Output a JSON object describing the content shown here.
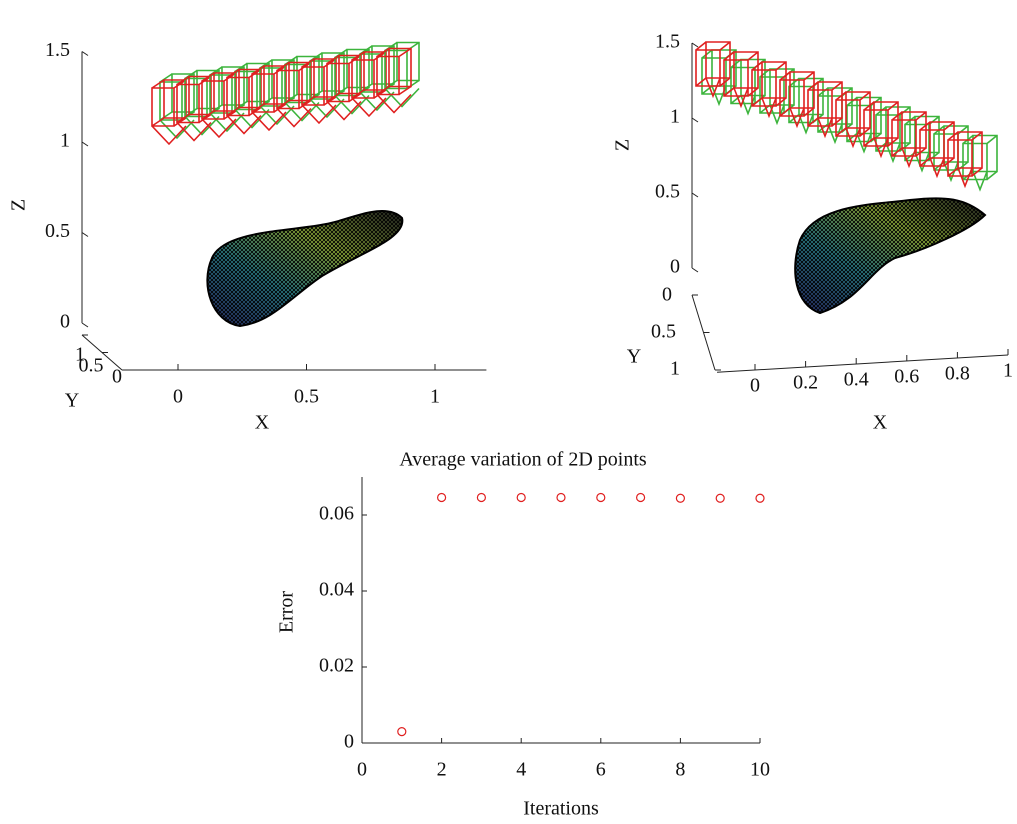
{
  "chart_data": [
    {
      "type": "surface3d",
      "xlabel": "X",
      "ylabel": "Y",
      "zlabel": "Z",
      "xlim": [
        -0.2,
        1.2
      ],
      "ylim": [
        0,
        1
      ],
      "zlim": [
        0,
        1.5
      ],
      "xticks": [
        0,
        0.5,
        1
      ],
      "yticks": [
        0,
        0.5,
        1
      ],
      "zticks": [
        0,
        0.5,
        1,
        1.5
      ]
    },
    {
      "type": "surface3d",
      "xlabel": "X",
      "ylabel": "Y",
      "zlabel": "Z",
      "xlim": [
        -0.15,
        1
      ],
      "ylim": [
        0,
        1
      ],
      "zlim": [
        0,
        1.5
      ],
      "xticks": [
        0,
        0.2,
        0.4,
        0.6,
        0.8,
        1
      ],
      "yticks": [
        0,
        0.5,
        1
      ],
      "zticks": [
        0,
        0.5,
        1,
        1.5
      ]
    },
    {
      "type": "scatter",
      "title": "Average variation of 2D points",
      "xlabel": "Iterations",
      "ylabel": "Error",
      "x": [
        1,
        2,
        3,
        4,
        5,
        6,
        7,
        8,
        9,
        10
      ],
      "values": [
        0.003,
        0.0646,
        0.0646,
        0.0646,
        0.0646,
        0.0646,
        0.0646,
        0.0644,
        0.0644,
        0.0644
      ],
      "color": "#e02020",
      "xlim": [
        0,
        10
      ],
      "ylim": [
        0,
        0.07
      ],
      "xticks": [
        0,
        2,
        4,
        6,
        8,
        10
      ],
      "yticks": [
        0,
        0.02,
        0.04,
        0.06
      ]
    }
  ]
}
